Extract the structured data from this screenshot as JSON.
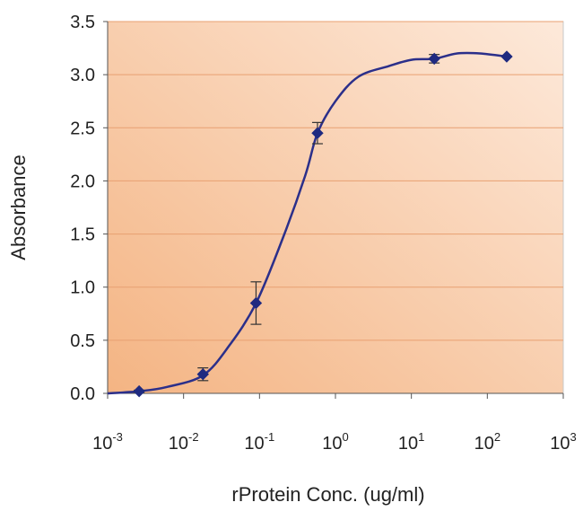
{
  "chart_data": {
    "type": "line",
    "title": "",
    "xlabel": "rProtein Conc. (ug/ml)",
    "ylabel": "Absorbance",
    "x_scale": "log10",
    "xlim": [
      0.001,
      1000
    ],
    "ylim": [
      0,
      3.5
    ],
    "x_ticks": [
      {
        "base": "10",
        "exp": "-3",
        "value": 0.001
      },
      {
        "base": "10",
        "exp": "-2",
        "value": 0.01
      },
      {
        "base": "10",
        "exp": "-1",
        "value": 0.1
      },
      {
        "base": "10",
        "exp": "0",
        "value": 1
      },
      {
        "base": "10",
        "exp": "1",
        "value": 10
      },
      {
        "base": "10",
        "exp": "2",
        "value": 100
      },
      {
        "base": "10",
        "exp": "3",
        "value": 1000
      }
    ],
    "y_ticks": [
      "0.0",
      "0.5",
      "1.0",
      "1.5",
      "2.0",
      "2.5",
      "3.0",
      "3.5"
    ],
    "grid": "horizontal",
    "legend": "none",
    "series": [
      {
        "x": [
          0.0026,
          0.018,
          0.09,
          0.58,
          20,
          180
        ],
        "y": [
          0.02,
          0.18,
          0.85,
          2.45,
          3.15,
          3.17
        ],
        "error": [
          0.01,
          0.06,
          0.2,
          0.1,
          0.04,
          0.0
        ]
      }
    ],
    "fit_curve": {
      "x": [
        0.001,
        0.0026,
        0.006,
        0.018,
        0.04,
        0.09,
        0.2,
        0.4,
        0.58,
        1,
        2,
        5,
        10,
        20,
        40,
        80,
        180
      ],
      "y": [
        0.0,
        0.02,
        0.06,
        0.17,
        0.45,
        0.85,
        1.45,
        2.05,
        2.45,
        2.75,
        2.98,
        3.08,
        3.14,
        3.15,
        3.2,
        3.2,
        3.17
      ]
    },
    "colors": {
      "line": "#2b2f8a",
      "marker": "#1f2a80",
      "gridline": "#e8a072",
      "plot_bg_light": "#fde9da",
      "plot_bg_dark": "#f4b483",
      "plot_border": "#c9c9c9"
    }
  }
}
